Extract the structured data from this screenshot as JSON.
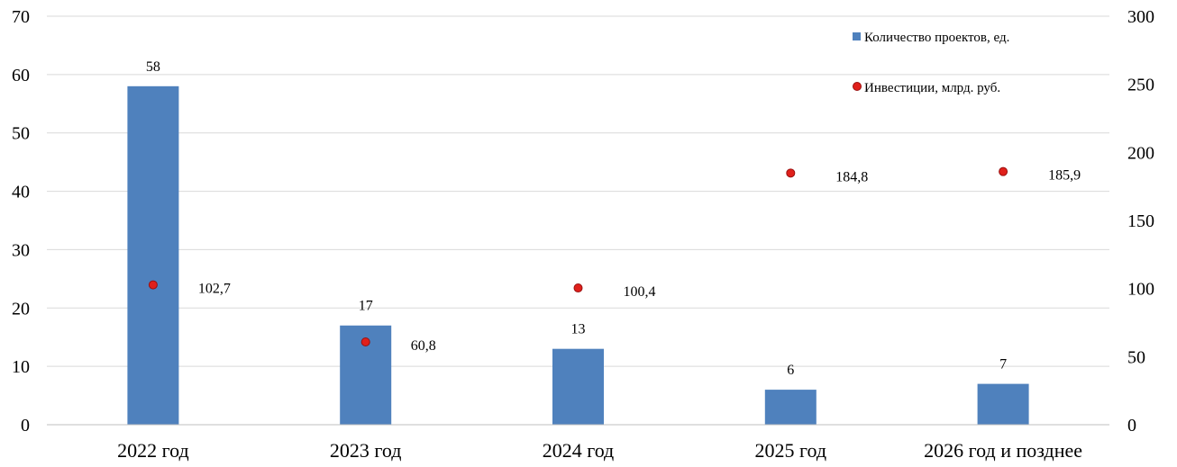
{
  "chart_data": {
    "type": "bar",
    "categories": [
      "2022 год",
      "2023 год",
      "2024 год",
      "2025 год",
      "2026 год и позднее"
    ],
    "series": [
      {
        "name": "Количество проектов, ед.",
        "type": "bar",
        "axis": "left",
        "color": "#4F81BD",
        "values": [
          58,
          17,
          13,
          6,
          7
        ],
        "data_labels": [
          "58",
          "17",
          "13",
          "6",
          "7"
        ]
      },
      {
        "name": "Инвестиции, млрд. руб.",
        "type": "scatter",
        "axis": "right",
        "color": "#E0201B",
        "values": [
          102.7,
          60.8,
          100.4,
          184.8,
          185.9
        ],
        "data_labels": [
          "102,7",
          "60,8",
          "100,4",
          "184,8",
          "185,9"
        ]
      }
    ],
    "y_left": {
      "min": 0,
      "max": 70,
      "step": 10,
      "ticks": [
        "0",
        "10",
        "20",
        "30",
        "40",
        "50",
        "60",
        "70"
      ]
    },
    "y_right": {
      "min": 0,
      "max": 300,
      "step": 50,
      "ticks": [
        "0",
        "50",
        "100",
        "150",
        "200",
        "250",
        "300"
      ]
    },
    "grid": true,
    "legend_position": "top-right",
    "title": "",
    "xlabel": "",
    "ylabel": ""
  }
}
